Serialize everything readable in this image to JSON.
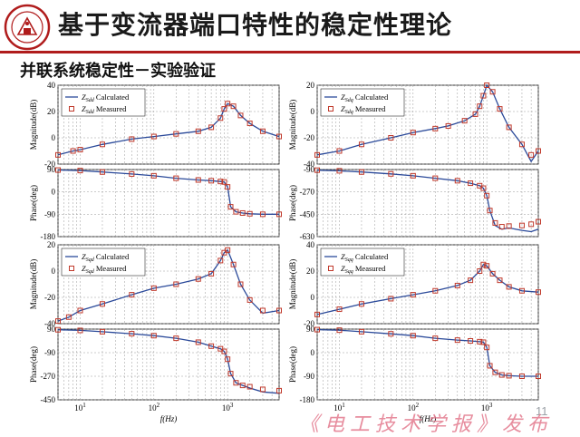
{
  "header": {
    "title": "基于变流器端口特性的稳定性理论",
    "subtitle": "并联系统稳定性－实验验证"
  },
  "footer": {
    "page_number": "11",
    "watermark": "《电工技术学报》发布"
  },
  "colors": {
    "accent_red": "#b01c1c",
    "calculated_line": "#2b4a9a",
    "measured_marker": "#c0392b"
  },
  "chart_data": [
    {
      "type": "line",
      "id": "mag-dd",
      "ylabel": "Magnitude(dB)",
      "xscale": "log",
      "xlim": [
        5,
        5000
      ],
      "ylim": [
        -20,
        40
      ],
      "yticks": [
        -20,
        0,
        20,
        40
      ],
      "grid": true,
      "legend": "top-left",
      "series": [
        {
          "name": "Z_Sdd Calculated",
          "sub": "Sdd",
          "suffix": "Calculated",
          "style": "line",
          "x": [
            5,
            8,
            10,
            20,
            50,
            100,
            200,
            400,
            600,
            800,
            900,
            1000,
            1200,
            1500,
            2000,
            3000,
            5000
          ],
          "y": [
            -13,
            -10,
            -9,
            -5,
            -1,
            1,
            3,
            5,
            8,
            15,
            22,
            26,
            24,
            17,
            11,
            5,
            1
          ]
        },
        {
          "name": "Z_Sdd Measured",
          "sub": "Sdd",
          "suffix": "Measured",
          "style": "marker",
          "x": [
            5,
            8,
            10,
            20,
            50,
            100,
            200,
            400,
            600,
            800,
            900,
            1000,
            1200,
            1500,
            2000,
            3000,
            5000
          ],
          "y": [
            -13,
            -10,
            -9,
            -5,
            -1,
            1,
            3,
            5,
            8,
            15,
            22,
            26,
            24,
            17,
            11,
            5,
            1
          ]
        }
      ]
    },
    {
      "type": "line",
      "id": "mag-dq",
      "ylabel": "Magnitude(dB)",
      "xscale": "log",
      "xlim": [
        5,
        5000
      ],
      "ylim": [
        -40,
        20
      ],
      "yticks": [
        -40,
        -20,
        0,
        20
      ],
      "grid": true,
      "legend": "top-left",
      "series": [
        {
          "name": "Z_Sdq Calculated",
          "sub": "Sdq",
          "suffix": "Calculated",
          "style": "line",
          "x": [
            5,
            10,
            20,
            50,
            100,
            200,
            300,
            500,
            700,
            800,
            900,
            1000,
            1200,
            1500,
            2000,
            3000,
            4000,
            5000
          ],
          "y": [
            -33,
            -30,
            -25,
            -20,
            -16,
            -13,
            -11,
            -7,
            -2,
            4,
            12,
            20,
            15,
            2,
            -12,
            -25,
            -38,
            -30
          ]
        },
        {
          "name": "Z_Sdq Measured",
          "sub": "Sdq",
          "suffix": "Measured",
          "style": "marker",
          "x": [
            5,
            10,
            20,
            50,
            100,
            200,
            300,
            500,
            700,
            800,
            900,
            1000,
            1200,
            1500,
            2000,
            3000,
            4000,
            5000
          ],
          "y": [
            -33,
            -30,
            -25,
            -20,
            -16,
            -13,
            -11,
            -7,
            -2,
            4,
            12,
            20,
            15,
            2,
            -12,
            -25,
            -33,
            -30
          ]
        }
      ]
    },
    {
      "type": "line",
      "id": "phase-dd",
      "ylabel": "Phase(deg)",
      "xscale": "log",
      "xlim": [
        5,
        5000
      ],
      "ylim": [
        -180,
        90
      ],
      "yticks": [
        -180,
        -90,
        0,
        90
      ],
      "grid": true,
      "legend": "none",
      "series": [
        {
          "name": "Z_Sdd Calculated",
          "sub": "Sdd",
          "suffix": "Calculated",
          "style": "line",
          "x": [
            5,
            10,
            20,
            50,
            100,
            200,
            400,
            600,
            800,
            900,
            1000,
            1100,
            1300,
            1600,
            2000,
            3000,
            5000
          ],
          "y": [
            88,
            86,
            80,
            72,
            65,
            55,
            48,
            45,
            42,
            40,
            20,
            -60,
            -80,
            -85,
            -88,
            -90,
            -90
          ]
        },
        {
          "name": "Z_Sdd Measured",
          "sub": "Sdd",
          "suffix": "Measured",
          "style": "marker",
          "x": [
            5,
            10,
            20,
            50,
            100,
            200,
            400,
            600,
            800,
            900,
            1000,
            1100,
            1300,
            1600,
            2000,
            3000,
            5000
          ],
          "y": [
            88,
            86,
            80,
            72,
            65,
            55,
            48,
            45,
            42,
            40,
            20,
            -60,
            -80,
            -85,
            -88,
            -90,
            -90
          ]
        }
      ]
    },
    {
      "type": "line",
      "id": "phase-dq",
      "ylabel": "Phase(deg)",
      "xscale": "log",
      "xlim": [
        5,
        5000
      ],
      "ylim": [
        -630,
        -90
      ],
      "yticks": [
        -630,
        -450,
        -270,
        -90
      ],
      "grid": true,
      "legend": "none",
      "series": [
        {
          "name": "Z_Sdq Calculated",
          "sub": "Sdq",
          "suffix": "Calculated",
          "style": "line",
          "x": [
            5,
            10,
            20,
            50,
            100,
            200,
            400,
            600,
            800,
            900,
            1000,
            1100,
            1300,
            1600,
            2000,
            3000,
            4000,
            5000
          ],
          "y": [
            -95,
            -100,
            -110,
            -125,
            -140,
            -160,
            -180,
            -200,
            -220,
            -240,
            -300,
            -420,
            -540,
            -570,
            -560,
            -580,
            -590,
            -570
          ]
        },
        {
          "name": "Z_Sdq Measured",
          "sub": "Sdq",
          "suffix": "Measured",
          "style": "marker",
          "x": [
            5,
            10,
            20,
            50,
            100,
            200,
            400,
            600,
            800,
            900,
            1000,
            1100,
            1300,
            1600,
            2000,
            3000,
            4000,
            5000
          ],
          "y": [
            -95,
            -100,
            -110,
            -125,
            -140,
            -160,
            -180,
            -200,
            -220,
            -240,
            -300,
            -420,
            -520,
            -550,
            -545,
            -540,
            -530,
            -510
          ]
        }
      ]
    },
    {
      "type": "line",
      "id": "mag-qd",
      "ylabel": "Magnitude(dB)",
      "xscale": "log",
      "xlim": [
        5,
        5000
      ],
      "ylim": [
        -40,
        20
      ],
      "yticks": [
        -40,
        -20,
        0,
        20
      ],
      "grid": true,
      "legend": "top-left",
      "series": [
        {
          "name": "Z_Sqd Calculated",
          "sub": "Sqd",
          "suffix": "Calculated",
          "style": "line",
          "x": [
            5,
            7,
            10,
            20,
            50,
            100,
            200,
            400,
            600,
            800,
            900,
            1000,
            1200,
            1500,
            2000,
            3000,
            5000
          ],
          "y": [
            -38,
            -35,
            -30,
            -25,
            -18,
            -13,
            -10,
            -6,
            -2,
            8,
            14,
            16,
            5,
            -10,
            -22,
            -32,
            -30
          ]
        },
        {
          "name": "Z_Sqd Measured",
          "sub": "Sqd",
          "suffix": "Measured",
          "style": "marker",
          "x": [
            5,
            7,
            10,
            20,
            50,
            100,
            200,
            400,
            600,
            800,
            900,
            1000,
            1200,
            1500,
            2000,
            3000,
            5000
          ],
          "y": [
            -38,
            -35,
            -30,
            -25,
            -18,
            -13,
            -10,
            -6,
            -2,
            8,
            14,
            16,
            5,
            -10,
            -22,
            -30,
            -30
          ]
        }
      ]
    },
    {
      "type": "line",
      "id": "mag-qq",
      "ylabel": "Magnitude(dB)",
      "xscale": "log",
      "xlim": [
        5,
        5000
      ],
      "ylim": [
        -20,
        40
      ],
      "yticks": [
        -20,
        0,
        20,
        40
      ],
      "grid": true,
      "legend": "top-left",
      "series": [
        {
          "name": "Z_Sqq Calculated",
          "sub": "Sqq",
          "suffix": "Calculated",
          "style": "line",
          "x": [
            5,
            10,
            20,
            50,
            100,
            200,
            400,
            600,
            800,
            900,
            1000,
            1200,
            1500,
            2000,
            3000,
            5000
          ],
          "y": [
            -13,
            -9,
            -5,
            -1,
            2,
            5,
            9,
            13,
            20,
            25,
            24,
            18,
            13,
            8,
            5,
            4
          ]
        },
        {
          "name": "Z_Sqq Measured",
          "sub": "Sqq",
          "suffix": "Measured",
          "style": "marker",
          "x": [
            5,
            10,
            20,
            50,
            100,
            200,
            400,
            600,
            800,
            900,
            1000,
            1200,
            1500,
            2000,
            3000,
            5000
          ],
          "y": [
            -13,
            -9,
            -5,
            -1,
            2,
            5,
            9,
            13,
            20,
            25,
            24,
            18,
            13,
            8,
            5,
            4
          ]
        }
      ]
    },
    {
      "type": "line",
      "id": "phase-qd",
      "ylabel": "Phase(deg)",
      "xscale": "log",
      "xlim": [
        5,
        5000
      ],
      "ylim": [
        -450,
        90
      ],
      "yticks": [
        -450,
        -270,
        -90,
        90
      ],
      "grid": true,
      "legend": "none",
      "xlabel": "f(Hz)",
      "series": [
        {
          "name": "Z_Sqd Calculated",
          "sub": "Sqd",
          "suffix": "Calculated",
          "style": "line",
          "x": [
            5,
            10,
            20,
            50,
            100,
            200,
            400,
            600,
            800,
            900,
            1000,
            1100,
            1300,
            1600,
            2000,
            3000,
            5000
          ],
          "y": [
            85,
            80,
            70,
            55,
            40,
            20,
            -10,
            -40,
            -60,
            -80,
            -140,
            -250,
            -320,
            -340,
            -360,
            -390,
            -400
          ]
        },
        {
          "name": "Z_Sqd Measured",
          "sub": "Sqd",
          "suffix": "Measured",
          "style": "marker",
          "x": [
            5,
            10,
            20,
            50,
            100,
            200,
            400,
            600,
            800,
            900,
            1000,
            1100,
            1300,
            1600,
            2000,
            3000,
            5000
          ],
          "y": [
            85,
            80,
            70,
            55,
            40,
            20,
            -10,
            -40,
            -60,
            -80,
            -140,
            -250,
            -320,
            -340,
            -350,
            -370,
            -380
          ]
        }
      ]
    },
    {
      "type": "line",
      "id": "phase-qq",
      "ylabel": "Phase(deg)",
      "xscale": "log",
      "xlim": [
        5,
        5000
      ],
      "ylim": [
        -180,
        90
      ],
      "yticks": [
        -180,
        -90,
        0,
        90
      ],
      "grid": true,
      "legend": "none",
      "xlabel": "f(Hz)",
      "series": [
        {
          "name": "Z_Sqq Calculated",
          "sub": "Sqq",
          "suffix": "Calculated",
          "style": "line",
          "x": [
            5,
            10,
            20,
            50,
            100,
            200,
            400,
            600,
            800,
            900,
            1000,
            1100,
            1300,
            1600,
            2000,
            3000,
            5000
          ],
          "y": [
            88,
            86,
            80,
            72,
            65,
            55,
            48,
            45,
            42,
            40,
            20,
            -50,
            -75,
            -85,
            -88,
            -90,
            -90
          ]
        },
        {
          "name": "Z_Sqq Measured",
          "sub": "Sqq",
          "suffix": "Measured",
          "style": "marker",
          "x": [
            5,
            10,
            20,
            50,
            100,
            200,
            400,
            600,
            800,
            900,
            1000,
            1100,
            1300,
            1600,
            2000,
            3000,
            5000
          ],
          "y": [
            88,
            86,
            80,
            72,
            65,
            55,
            48,
            45,
            42,
            40,
            20,
            -50,
            -75,
            -85,
            -88,
            -90,
            -90
          ]
        }
      ]
    }
  ]
}
